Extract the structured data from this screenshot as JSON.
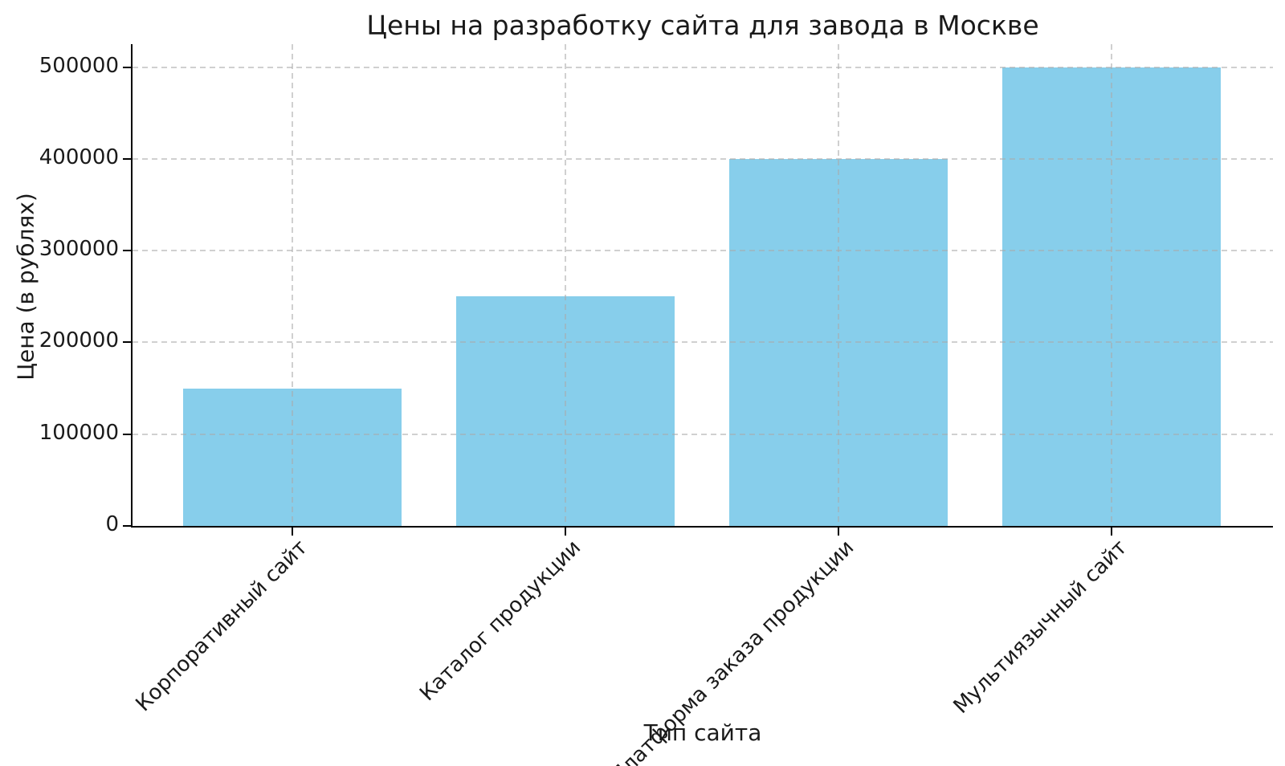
{
  "chart_data": {
    "type": "bar",
    "title": "Цены на разработку сайта для завода в Москве",
    "xlabel": "Тип сайта",
    "ylabel": "Цена (в рублях)",
    "categories": [
      "Корпоративный сайт",
      "Каталог продукции",
      "Платформа заказа продукции",
      "Мультиязычный сайт"
    ],
    "values": [
      150000,
      250000,
      400000,
      500000
    ],
    "y_ticks": [
      0,
      100000,
      200000,
      300000,
      400000,
      500000
    ],
    "y_tick_labels": [
      "0",
      "100000",
      "200000",
      "300000",
      "400000",
      "500000"
    ],
    "ylim": [
      0,
      525000
    ],
    "xlim": [
      -0.585,
      3.59
    ],
    "bar_width_fraction": 0.8,
    "bar_color": "#87CEEB",
    "grid": true,
    "grid_linestyle": "dashed",
    "grid_color": "#aaaaaa",
    "x_tick_rotation_deg": 45,
    "legend_position": "none",
    "background_color": "#ffffff",
    "text_color": "#1a1a1a"
  }
}
